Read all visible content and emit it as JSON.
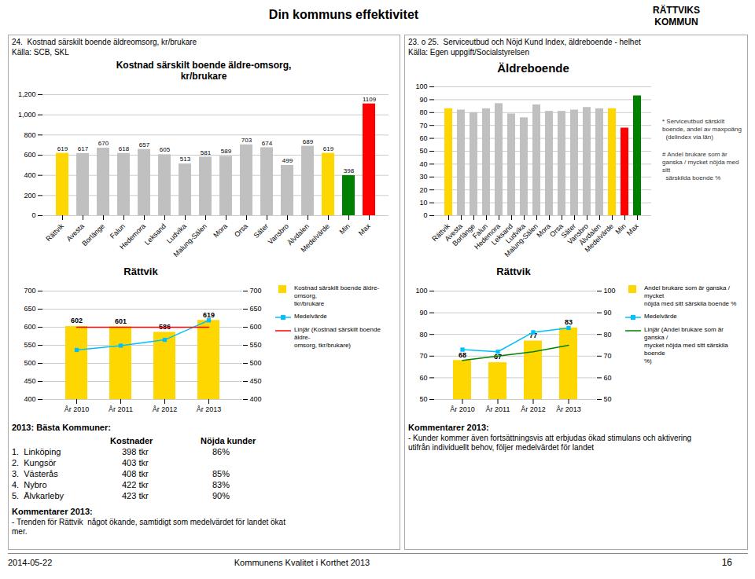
{
  "title": "Din kommuns effektivitet",
  "annotations": [
    "RÄTTVIKS\nKOMMUN",
    "24.  Kostnad särskilt boende äldreomsorg, kr/brukare",
    "Källa: SCB, SKL",
    "23. o 25.  Serviceutbud och Nöjd Kund Index, äldreboende - helhet",
    "Källa: Egen uppgift/Socialstyrelsen",
    "Kommentarer 2013:",
    "- Trenden för Rättvik  något ökande, samtidigt som medelvärdet för landet ökat\nmer.",
    "Kommentarer 2013:",
    "- Kunder kommer även fortsättningsvis att erbjudas ökad stimulans och aktivering\nutifrån individuellt behov, följer medelvärdet för landet",
    "2014-05-22",
    "Kommunens Kvalitet i Korthet 2013",
    "16"
  ],
  "table": {
    "title": "2013: Bästa Kommuner:",
    "columns": [
      "Kostnader",
      "Nöjda kunder"
    ],
    "rows": [
      [
        "1.  Linköping",
        "398 tkr",
        "86%"
      ],
      [
        "2.  Kungsör",
        "403 tkr",
        null
      ],
      [
        "3.  Västerås",
        "408 tkr",
        "85%"
      ],
      [
        "4.  Nybro",
        "422 tkr",
        "83%"
      ],
      [
        "5.  Älvkarleby",
        "423 tkr",
        "90%"
      ]
    ]
  },
  "chart_data": [
    {
      "type": "bar",
      "title": "Kostnad särskilt boende äldre-omsorg,\nkr/brukare",
      "categories": [
        "Rättvik",
        "Avesta",
        "Borlänge",
        "Falun",
        "Hedemora",
        "Leksand",
        "Ludvika",
        "Malung-Sälen",
        "Mora",
        "Orsa",
        "Säter",
        "Vansbro",
        "Älvdalen",
        "Medelvärde",
        "Min",
        "Max"
      ],
      "values": [
        619,
        617,
        670,
        618,
        657,
        605,
        513,
        581,
        589,
        703,
        674,
        499,
        689,
        619,
        398,
        1109
      ],
      "colors": [
        "#FFD700",
        "#C0C0C0",
        "#C0C0C0",
        "#C0C0C0",
        "#C0C0C0",
        "#C0C0C0",
        "#C0C0C0",
        "#C0C0C0",
        "#C0C0C0",
        "#C0C0C0",
        "#C0C0C0",
        "#C0C0C0",
        "#C0C0C0",
        "#FFD700",
        "#008000",
        "#FF0000"
      ],
      "ylim": [
        0,
        1200
      ],
      "yticks": [
        0,
        200,
        400,
        600,
        800,
        1000,
        1200
      ],
      "grid": true,
      "data_labels": true
    },
    {
      "type": "bar",
      "title": "Äldreboende",
      "categories": [
        "Rättvik",
        "Avesta",
        "Borlänge",
        "Falun",
        "Hedemora",
        "Leksand",
        "Ludvika",
        "Malung-Sälen",
        "Mora",
        "Orsa",
        "Säter",
        "Vansbro",
        "Älvdalen",
        "Medelvärde",
        "Min",
        "Max"
      ],
      "values": [
        83,
        82,
        80,
        83,
        87,
        79,
        76,
        86,
        81,
        81,
        82,
        84,
        83,
        83,
        68,
        93
      ],
      "colors": [
        "#FFD700",
        "#C0C0C0",
        "#C0C0C0",
        "#C0C0C0",
        "#C0C0C0",
        "#C0C0C0",
        "#C0C0C0",
        "#C0C0C0",
        "#C0C0C0",
        "#C0C0C0",
        "#C0C0C0",
        "#C0C0C0",
        "#C0C0C0",
        "#FFD700",
        "#FF0000",
        "#008000"
      ],
      "ylim": [
        0,
        100
      ],
      "yticks": [
        0,
        10,
        20,
        30,
        40,
        50,
        60,
        70,
        80,
        90,
        100
      ],
      "grid": true,
      "annotations": [
        "* Serviceutbud särskilt boende, andel av maxpoäng\n  (delindex via län)",
        "# Andel brukare som är ganska / mycket nöjda med sitt\n  särskilda boende %"
      ]
    },
    {
      "type": "bar",
      "title": "Rättvik",
      "categories": [
        "År 2010",
        "År 2011",
        "År 2012",
        "År 2013"
      ],
      "ylim": [
        400,
        700
      ],
      "yticks": [
        400,
        450,
        500,
        550,
        600,
        650,
        700
      ],
      "y2lim": [
        400,
        700
      ],
      "y2ticks": [
        400,
        450,
        500,
        550,
        600,
        650,
        700
      ],
      "grid": true,
      "legend": "right",
      "series": [
        {
          "name": "Kostnad särskilt boende äldre-omsorg,\ntkr/brukare",
          "type": "bar",
          "color": "#FFD700",
          "values": [
            602,
            601,
            586,
            619
          ],
          "data_labels": true
        },
        {
          "name": "Medelvärde",
          "type": "line",
          "color": "#00BFFF",
          "marker": "square",
          "values": [
            537,
            549,
            565,
            619
          ]
        },
        {
          "name": "Linjär (Kostnad särskilt boende äldre-\nomsorg, tkr/brukare)",
          "type": "line",
          "color": "#FF0000",
          "values": [
            600,
            600,
            600,
            600
          ]
        }
      ]
    },
    {
      "type": "bar",
      "title": "Rättvik",
      "categories": [
        "År 2010",
        "År 2011",
        "År 2012",
        "År 2013"
      ],
      "ylim": [
        50,
        100
      ],
      "yticks": [
        50,
        60,
        70,
        80,
        90,
        100
      ],
      "y2lim": [
        50,
        100
      ],
      "y2ticks": [
        50,
        60,
        70,
        80,
        90,
        100
      ],
      "grid": true,
      "legend": "right",
      "series": [
        {
          "name": "Andel brukare som är ganska / mycket\nnöjda med sitt särskila boende %",
          "type": "bar",
          "color": "#FFD700",
          "values": [
            68,
            67,
            77,
            83
          ],
          "data_labels": true
        },
        {
          "name": "Medelvärde",
          "type": "line",
          "color": "#00BFFF",
          "marker": "square",
          "values": [
            73,
            72,
            81,
            83
          ]
        },
        {
          "name": "Linjär (Andel brukare som är ganska /\nmycket nöjda med sitt särskila boende\n%)",
          "type": "line",
          "color": "#008000",
          "values": [
            68,
            70,
            72,
            75
          ]
        }
      ]
    }
  ]
}
